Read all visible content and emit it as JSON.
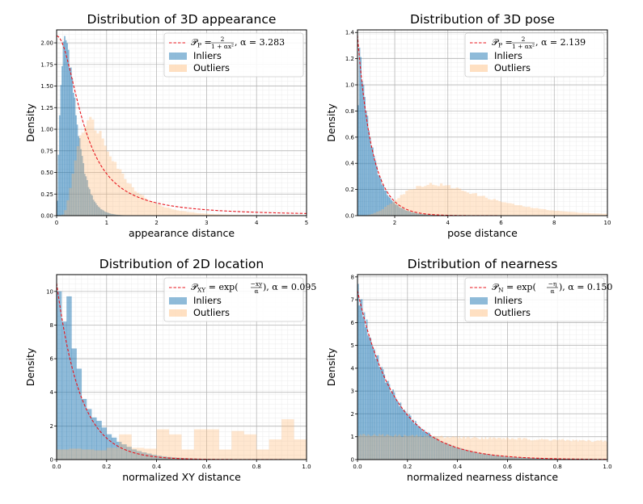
{
  "chart_data": [
    {
      "type": "bar",
      "title": "Distribution of 3D appearance",
      "xlabel": "appearance distance",
      "ylabel": "Density",
      "xlim": [
        0,
        5
      ],
      "ylim": [
        0,
        2.15
      ],
      "xticks": [
        "0",
        "1",
        "2",
        "3",
        "4",
        "5"
      ],
      "yticks": [
        "0.00",
        "0.25",
        "0.50",
        "0.75",
        "1.00",
        "1.25",
        "1.50",
        "1.75",
        "2.00"
      ],
      "grid": true,
      "legend_position": "top-right",
      "curve": {
        "name": "P_P = 2/(1+αx²), α = 3.283",
        "kind": "rational",
        "alpha": 3.283,
        "amplitude": 2,
        "color": "#e8141c"
      },
      "legend": {
        "formula": {
          "lhs": "𝒫",
          "sub": "P",
          "num": "2",
          "den": "1 + αx²",
          "alpha": ", α = 3.283"
        },
        "inliers": "Inliers",
        "outliers": "Outliers"
      },
      "series": [
        {
          "name": "Inliers",
          "color": "#1f77b4",
          "bin_width": 0.025,
          "profile": {
            "kind": "gamma_like",
            "peak_x": 0.18,
            "peak_y": 2.03,
            "shape": 1.4,
            "start": 0.0
          }
        },
        {
          "name": "Outliers",
          "color": "#ffbb78",
          "bin_width": 0.05,
          "profile": {
            "kind": "lognormal_like",
            "peak_x": 0.65,
            "peak_y": 1.1,
            "sigma": 0.55
          }
        }
      ]
    },
    {
      "type": "bar",
      "title": "Distribution of 3D pose",
      "xlabel": "pose distance",
      "ylabel": "Density",
      "xlim": [
        0.6,
        10
      ],
      "ylim": [
        0,
        1.42
      ],
      "xticks": [
        "2",
        "4",
        "6",
        "8",
        "10"
      ],
      "yticks": [
        "0.0",
        "0.2",
        "0.4",
        "0.6",
        "0.8",
        "1.0",
        "1.2",
        "1.4"
      ],
      "grid": true,
      "legend_position": "top-right",
      "curve": {
        "name": "P_P = 2/(1+αx²), α = 2.139",
        "kind": "shifted_exp",
        "x0": 0.6,
        "y0": 1.38,
        "scale": 0.55,
        "color": "#e8141c"
      },
      "legend": {
        "formula": {
          "lhs": "𝒫",
          "sub": "P",
          "num": "2",
          "den": "1 + αx²",
          "alpha": ", α = 2.139"
        },
        "inliers": "Inliers",
        "outliers": "Outliers"
      },
      "series": [
        {
          "name": "Inliers",
          "color": "#1f77b4",
          "bin_width": 0.05,
          "profile": {
            "kind": "decay",
            "x0": 0.6,
            "peak_y": 1.28,
            "scale": 0.5,
            "rise": 0.12
          }
        },
        {
          "name": "Outliers",
          "color": "#ffbb78",
          "bin_width": 0.1,
          "profile": {
            "kind": "lognormal_like",
            "peak_x": 3.4,
            "peak_y": 0.24,
            "sigma": 0.45
          }
        }
      ]
    },
    {
      "type": "bar",
      "title": "Distribution of 2D location",
      "xlabel": "normalized XY distance",
      "ylabel": "Density",
      "xlim": [
        0,
        1.0
      ],
      "ylim": [
        0,
        11
      ],
      "xticks": [
        "0.0",
        "0.2",
        "0.4",
        "0.6",
        "0.8",
        "1.0"
      ],
      "yticks": [
        "0",
        "2",
        "4",
        "6",
        "8",
        "10"
      ],
      "grid": true,
      "legend_position": "top-right",
      "curve": {
        "name": "P_XY = exp(−xy/α), α = 0.095",
        "kind": "exp",
        "alpha": 0.095,
        "amplitude": 10.5,
        "color": "#e8141c"
      },
      "legend": {
        "formula": {
          "lhs": "𝒫",
          "sub": "XY",
          "num": "−xy",
          "den": "α",
          "alpha": ", α = 0.095",
          "fn": "exp"
        },
        "inliers": "Inliers",
        "outliers": "Outliers"
      },
      "series": [
        {
          "name": "Inliers",
          "color": "#1f77b4",
          "bin_width": 0.02,
          "values": [
            10.0,
            8.2,
            9.7,
            6.6,
            5.4,
            3.6,
            3.0,
            2.5,
            2.3,
            1.9,
            1.5,
            1.3,
            1.05,
            0.9,
            0.75,
            0.6,
            0.5,
            0.42,
            0.35,
            0.28,
            0.22,
            0.18,
            0.15,
            0.12,
            0.1,
            0.08,
            0.06,
            0.05,
            0.04,
            0.03,
            0.02,
            0.02,
            0.01,
            0.01,
            0.01
          ]
        },
        {
          "name": "Outliers",
          "color": "#ffbb78",
          "bin_width": 0.05,
          "values": [
            0.6,
            0.65,
            0.6,
            0.55,
            0.7,
            1.5,
            0.7,
            0.65,
            1.8,
            1.5,
            0.6,
            1.8,
            1.8,
            0.6,
            1.7,
            1.5,
            0.6,
            1.2,
            2.4,
            1.2
          ]
        }
      ]
    },
    {
      "type": "bar",
      "title": "Distribution of nearness",
      "xlabel": "normalized nearness distance",
      "ylabel": "Density",
      "xlim": [
        0,
        1.0
      ],
      "ylim": [
        0,
        8.1
      ],
      "xticks": [
        "0.0",
        "0.2",
        "0.4",
        "0.6",
        "0.8",
        "1.0"
      ],
      "yticks": [
        "0",
        "1",
        "2",
        "3",
        "4",
        "5",
        "6",
        "7",
        "8"
      ],
      "grid": true,
      "legend_position": "top-right",
      "curve": {
        "name": "P_N = exp(−η/α), α = 0.150",
        "kind": "exp",
        "alpha": 0.15,
        "amplitude": 7.4,
        "color": "#e8141c"
      },
      "legend": {
        "formula": {
          "lhs": "𝒫",
          "sub": "N",
          "num": "−η",
          "den": "α",
          "alpha": ", α = 0.150",
          "fn": "exp"
        },
        "inliers": "Inliers",
        "outliers": "Outliers"
      },
      "series": [
        {
          "name": "Inliers",
          "color": "#1f77b4",
          "bin_width": 0.005,
          "profile": {
            "kind": "exp_decay",
            "y0": 7.5,
            "scale": 0.15
          }
        },
        {
          "name": "Outliers",
          "color": "#ffbb78",
          "bin_width": 0.005,
          "profile": {
            "kind": "linear",
            "y_start": 1.1,
            "y_end": 0.8
          }
        }
      ]
    }
  ]
}
